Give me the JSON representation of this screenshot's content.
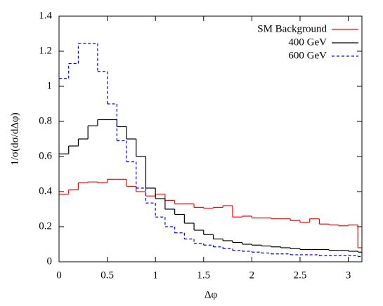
{
  "chart_data": {
    "type": "histogram",
    "xlabel": "Δφ",
    "ylabel": "1/σ(dσ/dΔφ)",
    "bins": [
      0,
      0.1,
      0.2,
      0.3,
      0.4,
      0.5,
      0.6,
      0.7,
      0.8,
      0.9,
      1.0,
      1.1,
      1.2,
      1.3,
      1.4,
      1.5,
      1.6,
      1.7,
      1.8,
      1.9,
      2.0,
      2.1,
      2.2,
      2.3,
      2.4,
      2.5,
      2.6,
      2.7,
      2.8,
      2.9,
      3.0,
      3.1,
      3.14159
    ],
    "series": [
      {
        "name": "SM Background",
        "color": "#ff0000",
        "line_style": "solid",
        "values": [
          0.385,
          0.41,
          0.45,
          0.455,
          0.45,
          0.47,
          0.47,
          0.43,
          0.4,
          0.375,
          0.385,
          0.35,
          0.33,
          0.33,
          0.31,
          0.305,
          0.31,
          0.32,
          0.255,
          0.26,
          0.25,
          0.25,
          0.245,
          0.245,
          0.235,
          0.225,
          0.245,
          0.215,
          0.21,
          0.205,
          0.21,
          0.08
        ]
      },
      {
        "name": "400 GeV",
        "color": "#000000",
        "line_style": "solid",
        "values": [
          0.615,
          0.66,
          0.7,
          0.775,
          0.81,
          0.81,
          0.77,
          0.7,
          0.6,
          0.42,
          0.36,
          0.3,
          0.27,
          0.22,
          0.18,
          0.155,
          0.13,
          0.12,
          0.11,
          0.1,
          0.095,
          0.09,
          0.085,
          0.08,
          0.075,
          0.07,
          0.07,
          0.07,
          0.065,
          0.065,
          0.06,
          0.055
        ]
      },
      {
        "name": "600 GeV",
        "color": "#0000ff",
        "line_style": "dashed",
        "values": [
          1.045,
          1.13,
          1.245,
          1.245,
          1.085,
          0.9,
          0.69,
          0.57,
          0.42,
          0.335,
          0.255,
          0.2,
          0.165,
          0.13,
          0.105,
          0.095,
          0.085,
          0.075,
          0.065,
          0.06,
          0.055,
          0.05,
          0.045,
          0.045,
          0.04,
          0.04,
          0.04,
          0.035,
          0.035,
          0.035,
          0.035,
          0.03
        ]
      }
    ],
    "xlim": [
      0,
      3.14159
    ],
    "ylim": [
      0,
      1.4
    ],
    "xticks": [
      0,
      0.5,
      1,
      1.5,
      2,
      2.5,
      3
    ],
    "yticks": [
      0,
      0.2,
      0.4,
      0.6,
      0.8,
      1,
      1.2,
      1.4
    ],
    "legend": "upper right"
  }
}
